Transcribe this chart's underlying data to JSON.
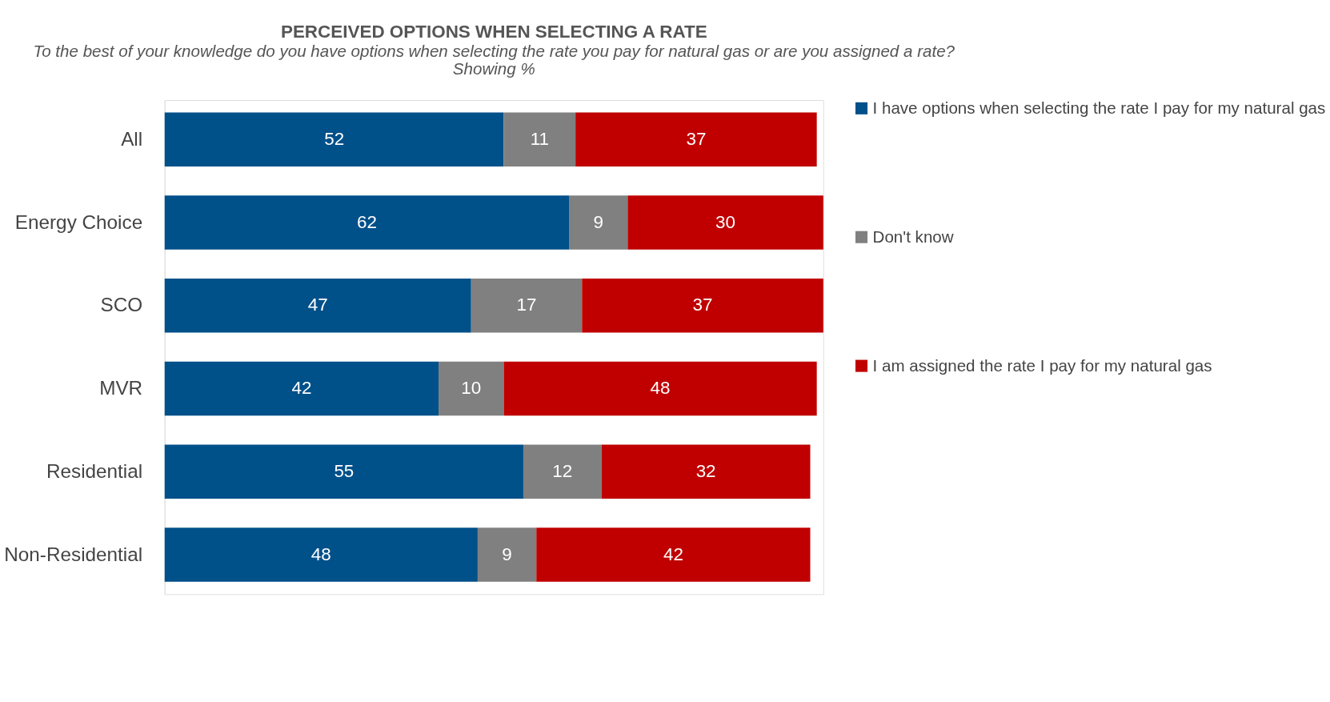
{
  "chart_data": {
    "type": "bar",
    "orientation": "horizontal",
    "stacked": true,
    "data_labels": true,
    "legend": "right",
    "grid": false,
    "title": "PERCEIVED OPTIONS WHEN SELECTING A RATE",
    "subtitle": "To the best of your knowledge do you have options when selecting the rate you pay for natural gas or are you assigned a rate?",
    "annotations": [
      "Showing %"
    ],
    "categories": [
      "All",
      "Energy Choice",
      "SCO",
      "MVR",
      "Residential",
      "Non-Residential"
    ],
    "series": [
      {
        "name": "I have options when selecting the rate I pay for my natural gas",
        "color": "#00508a",
        "values": [
          52,
          62,
          47,
          42,
          55,
          48
        ]
      },
      {
        "name": "Don't know",
        "color": "#808080",
        "values": [
          11,
          9,
          17,
          10,
          12,
          9
        ]
      },
      {
        "name": "I am assigned the rate I pay for my natural gas",
        "color": "#c00000",
        "values": [
          37,
          30,
          37,
          48,
          32,
          42
        ]
      }
    ]
  }
}
